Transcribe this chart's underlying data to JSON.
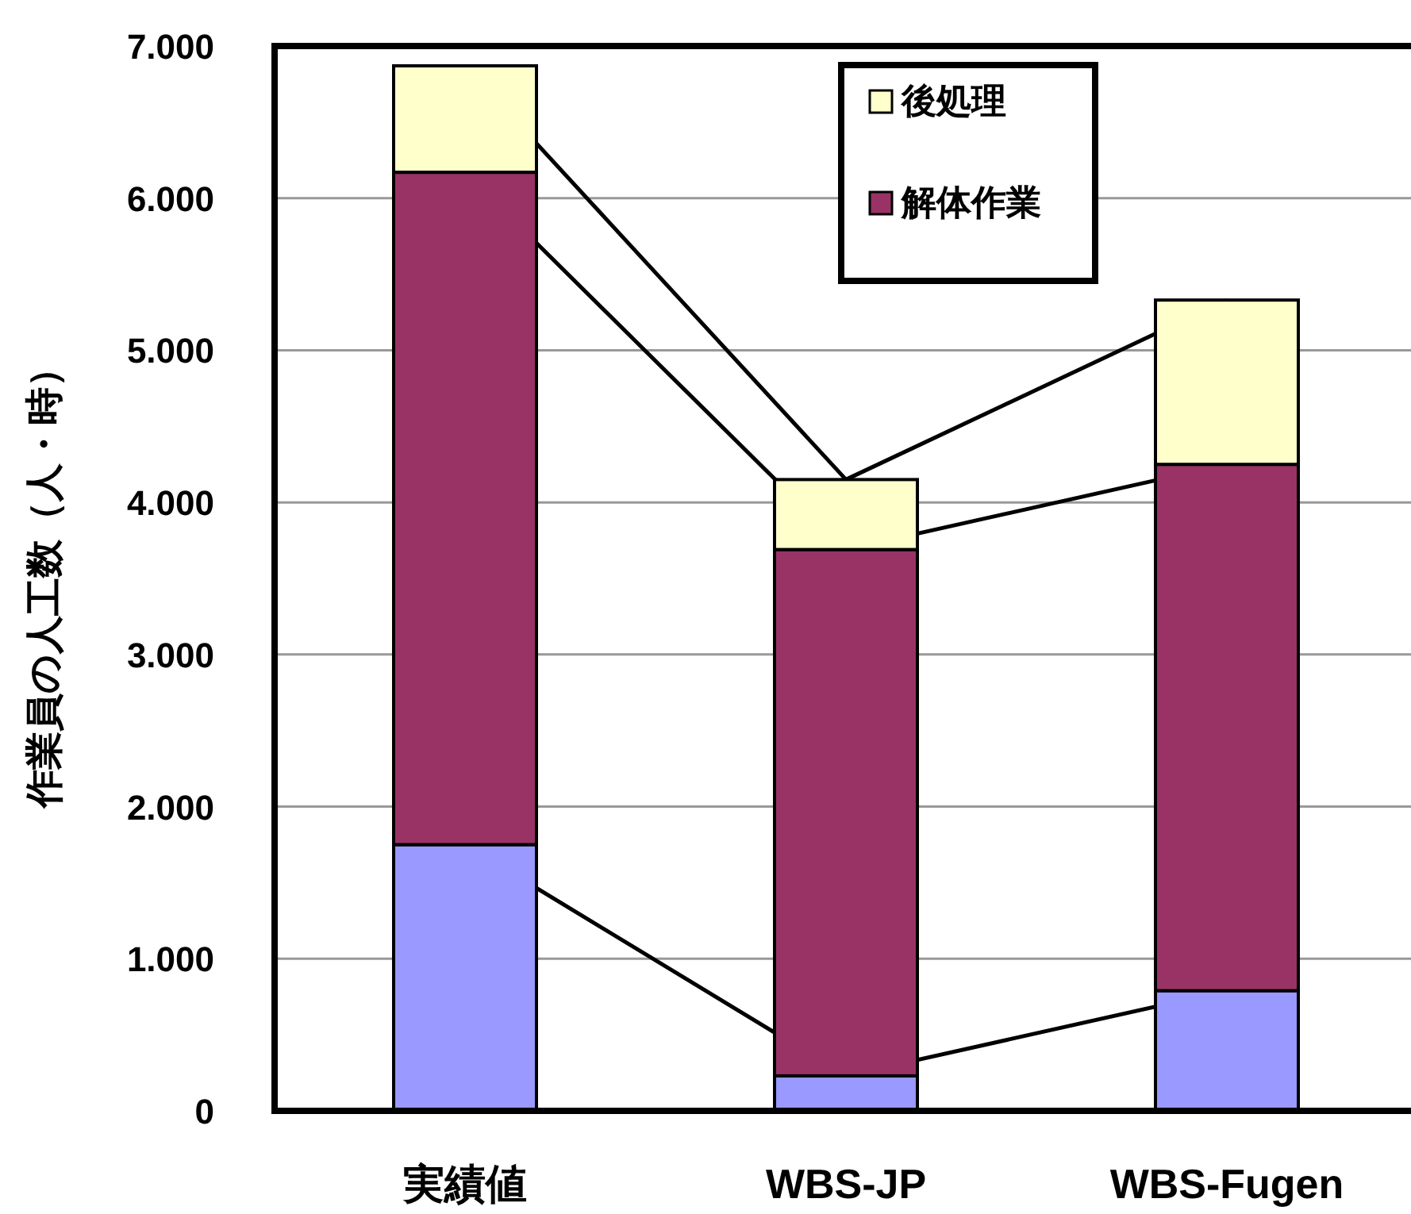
{
  "chart_data": {
    "type": "bar",
    "stacked": true,
    "ylabel": "作業員の人工数（人・時）",
    "categories": [
      "実績値",
      "WBS-JP",
      "WBS-Fugen"
    ],
    "series": [
      {
        "color": "#9999ff",
        "values": [
          1750,
          230,
          790
        ]
      },
      {
        "name": "解体作業",
        "color": "#993366",
        "values": [
          4420,
          3460,
          3460
        ]
      },
      {
        "name": "後処理",
        "color": "#ffffcc",
        "values": [
          700,
          460,
          1080
        ]
      },
      {
        "type": "line",
        "color": "#000000",
        "values": [
          1750,
          230,
          790
        ]
      },
      {
        "type": "line",
        "color": "#000000",
        "values": [
          6170,
          3690,
          4250
        ]
      },
      {
        "type": "line",
        "color": "#000000",
        "values": [
          6870,
          4150,
          5330
        ]
      }
    ],
    "ylim": [
      0,
      7000
    ],
    "yticks": [
      0,
      {
        "value": 1000,
        "label": "1.000"
      },
      {
        "value": 2000,
        "label": "2.000"
      },
      {
        "value": 3000,
        "label": "3.000"
      },
      {
        "value": 4000,
        "label": "4.000"
      },
      {
        "value": 5000,
        "label": "5.000"
      },
      {
        "value": 6000,
        "label": "6.000"
      },
      {
        "value": 7000,
        "label": "7.000"
      }
    ],
    "grid": "y",
    "legend": "top right"
  }
}
